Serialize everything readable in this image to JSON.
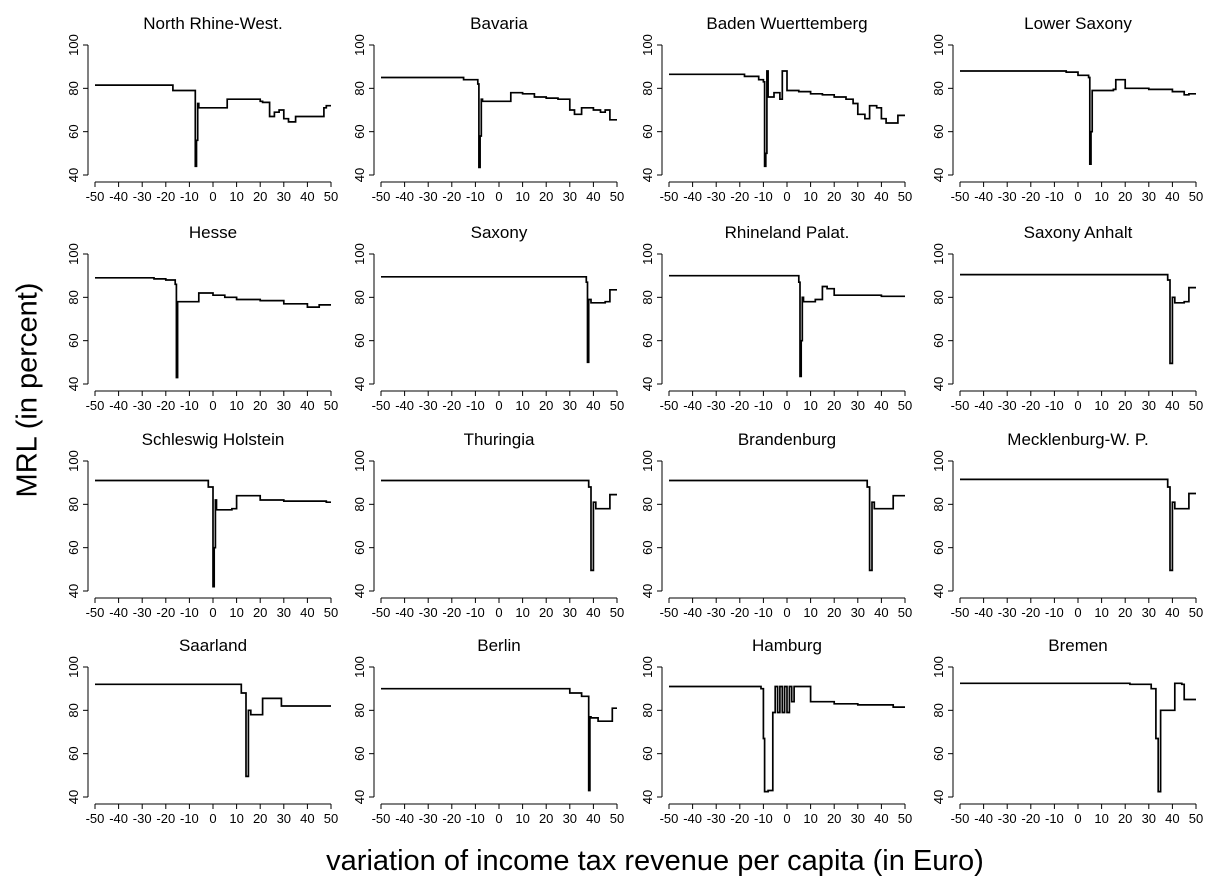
{
  "figure": {
    "ylabel": "MRL (in percent)",
    "xlabel": "variation of income tax revenue per capita (in Euro)"
  },
  "chart_data": [
    {
      "type": "line",
      "title": "North Rhine-West.",
      "xlim": [
        -50,
        50
      ],
      "ylim": [
        40,
        100
      ],
      "xticks": [
        -50,
        -40,
        -30,
        -20,
        -10,
        0,
        10,
        20,
        30,
        40,
        50
      ],
      "yticks": [
        40,
        60,
        80,
        100
      ],
      "x": [
        -50,
        -18,
        -17,
        -8,
        -7.5,
        -7,
        -6.5,
        -6,
        5,
        6,
        20,
        21,
        24,
        26,
        28,
        30,
        32,
        35,
        40,
        45,
        47,
        48,
        50
      ],
      "y": [
        81.5,
        81.5,
        79,
        79,
        44,
        56,
        73,
        71,
        71,
        75,
        74,
        73.5,
        67,
        69,
        70,
        66,
        64.5,
        67,
        67,
        67,
        71,
        72,
        72
      ]
    },
    {
      "type": "line",
      "title": "Bavaria",
      "xlim": [
        -50,
        50
      ],
      "ylim": [
        40,
        100
      ],
      "xticks": [
        -50,
        -40,
        -30,
        -20,
        -10,
        0,
        10,
        20,
        30,
        40,
        50
      ],
      "yticks": [
        40,
        60,
        80,
        100
      ],
      "x": [
        -50,
        -20,
        -15,
        -9,
        -8.5,
        -8,
        -7.5,
        -7,
        -3,
        1,
        5,
        10,
        15,
        20,
        25,
        30,
        32,
        35,
        40,
        43,
        45,
        47,
        50
      ],
      "y": [
        85,
        85,
        84,
        82,
        43.5,
        58,
        75,
        74,
        74,
        74,
        78,
        77.5,
        76,
        75.5,
        75,
        70,
        68,
        71,
        70,
        69,
        70,
        65.5,
        65.5
      ]
    },
    {
      "type": "line",
      "title": "Baden Wuerttemberg",
      "xlim": [
        -50,
        50
      ],
      "ylim": [
        40,
        100
      ],
      "xticks": [
        -50,
        -40,
        -30,
        -20,
        -10,
        0,
        10,
        20,
        30,
        40,
        50
      ],
      "yticks": [
        40,
        60,
        80,
        100
      ],
      "x": [
        -50,
        -25,
        -18,
        -12,
        -10,
        -9.5,
        -9,
        -8.5,
        -8,
        -6,
        -5.5,
        -3,
        -2,
        0,
        5,
        10,
        15,
        20,
        25,
        28,
        30,
        33,
        35,
        38,
        40,
        42,
        45,
        47,
        50
      ],
      "y": [
        86.5,
        86.5,
        85.5,
        84,
        83,
        44,
        50,
        88,
        76,
        76,
        78,
        75,
        88,
        79,
        78.5,
        77.5,
        77,
        76,
        75,
        73,
        68,
        66,
        72,
        71,
        66,
        64,
        64,
        67.5,
        67.5
      ]
    },
    {
      "type": "line",
      "title": "Lower Saxony",
      "xlim": [
        -50,
        50
      ],
      "ylim": [
        40,
        100
      ],
      "xticks": [
        -50,
        -40,
        -30,
        -20,
        -10,
        0,
        10,
        20,
        30,
        40,
        50
      ],
      "yticks": [
        40,
        60,
        80,
        100
      ],
      "x": [
        -50,
        -10,
        -5,
        0,
        4.5,
        5,
        5.5,
        6,
        15,
        16,
        20,
        30,
        40,
        45,
        47,
        50
      ],
      "y": [
        88,
        88,
        87.5,
        86,
        85,
        45,
        60,
        79,
        79.5,
        84,
        80,
        79.5,
        78.5,
        77,
        77.5,
        77.5
      ]
    },
    {
      "type": "line",
      "title": "Hesse",
      "xlim": [
        -50,
        50
      ],
      "ylim": [
        40,
        100
      ],
      "xticks": [
        -50,
        -40,
        -30,
        -20,
        -10,
        0,
        10,
        20,
        30,
        40,
        50
      ],
      "yticks": [
        40,
        60,
        80,
        100
      ],
      "x": [
        -50,
        -30,
        -25,
        -20,
        -16,
        -15.5,
        -15,
        -7,
        -6,
        0,
        5,
        10,
        20,
        30,
        40,
        45,
        50
      ],
      "y": [
        89,
        89,
        88.5,
        88,
        86,
        43,
        78,
        78,
        82,
        81,
        80,
        79,
        78.5,
        77,
        75.5,
        76.5,
        76.5
      ]
    },
    {
      "type": "line",
      "title": "Saxony",
      "xlim": [
        -50,
        50
      ],
      "ylim": [
        40,
        100
      ],
      "xticks": [
        -50,
        -40,
        -30,
        -20,
        -10,
        0,
        10,
        20,
        30,
        40,
        50
      ],
      "yticks": [
        40,
        60,
        80,
        100
      ],
      "x": [
        -50,
        -20,
        30,
        37,
        37.5,
        38,
        39,
        42,
        45,
        47,
        50
      ],
      "y": [
        89.5,
        89.5,
        89.5,
        87,
        50,
        79,
        77.5,
        77.5,
        78,
        83.5,
        83.5
      ]
    },
    {
      "type": "line",
      "title": "Rhineland Palat.",
      "xlim": [
        -50,
        50
      ],
      "ylim": [
        40,
        100
      ],
      "xticks": [
        -50,
        -40,
        -30,
        -20,
        -10,
        0,
        10,
        20,
        30,
        40,
        50
      ],
      "yticks": [
        40,
        60,
        80,
        100
      ],
      "x": [
        -50,
        -20,
        -2,
        5,
        5.5,
        6,
        6.5,
        7,
        8,
        12,
        15,
        17,
        20,
        30,
        40,
        50
      ],
      "y": [
        90,
        90,
        90,
        87,
        43.5,
        60,
        80,
        78,
        78,
        79,
        85,
        84,
        81,
        81,
        80.5,
        80.5
      ]
    },
    {
      "type": "line",
      "title": "Saxony Anhalt",
      "xlim": [
        -50,
        50
      ],
      "ylim": [
        40,
        100
      ],
      "xticks": [
        -50,
        -40,
        -30,
        -20,
        -10,
        0,
        10,
        20,
        30,
        40,
        50
      ],
      "yticks": [
        40,
        60,
        80,
        100
      ],
      "x": [
        -50,
        -20,
        32,
        38,
        39,
        40,
        41,
        42,
        45,
        47,
        50
      ],
      "y": [
        90.5,
        90.5,
        90.5,
        88,
        49.5,
        80,
        77.5,
        77.5,
        78,
        84.5,
        84.5
      ]
    },
    {
      "type": "line",
      "title": "Schleswig Holstein",
      "xlim": [
        -50,
        50
      ],
      "ylim": [
        40,
        100
      ],
      "xticks": [
        -50,
        -40,
        -30,
        -20,
        -10,
        0,
        10,
        20,
        30,
        40,
        50
      ],
      "yticks": [
        40,
        60,
        80,
        100
      ],
      "x": [
        -50,
        -20,
        -8,
        -2,
        0,
        0.5,
        1,
        1.5,
        2,
        8,
        10,
        20,
        30,
        40,
        48,
        50
      ],
      "y": [
        91,
        91,
        91,
        88,
        42,
        60,
        82,
        77.5,
        77.5,
        78,
        84,
        82,
        81.5,
        81.5,
        81,
        81
      ]
    },
    {
      "type": "line",
      "title": "Thuringia",
      "xlim": [
        -50,
        50
      ],
      "ylim": [
        40,
        100
      ],
      "xticks": [
        -50,
        -40,
        -30,
        -20,
        -10,
        0,
        10,
        20,
        30,
        40,
        50
      ],
      "yticks": [
        40,
        60,
        80,
        100
      ],
      "x": [
        -50,
        -20,
        32,
        38,
        39,
        40,
        41,
        45,
        47,
        50
      ],
      "y": [
        91,
        91,
        91,
        88,
        49.5,
        81,
        78,
        78,
        84.5,
        84.5
      ]
    },
    {
      "type": "line",
      "title": "Brandenburg",
      "xlim": [
        -50,
        50
      ],
      "ylim": [
        40,
        100
      ],
      "xticks": [
        -50,
        -40,
        -30,
        -20,
        -10,
        0,
        10,
        20,
        30,
        40,
        50
      ],
      "yticks": [
        40,
        60,
        80,
        100
      ],
      "x": [
        -50,
        -20,
        28,
        34,
        35,
        36,
        37,
        42,
        45,
        47,
        50
      ],
      "y": [
        91,
        91,
        91,
        88,
        49.5,
        81,
        78,
        78,
        84,
        84,
        84
      ]
    },
    {
      "type": "line",
      "title": "Mecklenburg-W. P.",
      "xlim": [
        -50,
        50
      ],
      "ylim": [
        40,
        100
      ],
      "xticks": [
        -50,
        -40,
        -30,
        -20,
        -10,
        0,
        10,
        20,
        30,
        40,
        50
      ],
      "yticks": [
        40,
        60,
        80,
        100
      ],
      "x": [
        -50,
        -20,
        32,
        38,
        39,
        40,
        41,
        45,
        47,
        50
      ],
      "y": [
        91.5,
        91.5,
        91.5,
        88,
        49.5,
        81,
        78,
        78,
        85,
        85
      ]
    },
    {
      "type": "line",
      "title": "Saarland",
      "xlim": [
        -50,
        50
      ],
      "ylim": [
        40,
        100
      ],
      "xticks": [
        -50,
        -40,
        -30,
        -20,
        -10,
        0,
        10,
        20,
        30,
        40,
        50
      ],
      "yticks": [
        40,
        60,
        80,
        100
      ],
      "x": [
        -50,
        -20,
        6,
        12,
        14,
        15,
        16,
        17,
        21,
        24,
        29,
        30,
        40,
        50
      ],
      "y": [
        92,
        92,
        92,
        88,
        49.5,
        80,
        78,
        78,
        85.5,
        85.5,
        82,
        82,
        82,
        82
      ]
    },
    {
      "type": "line",
      "title": "Berlin",
      "xlim": [
        -50,
        50
      ],
      "ylim": [
        40,
        100
      ],
      "xticks": [
        -50,
        -40,
        -30,
        -20,
        -10,
        0,
        10,
        20,
        30,
        40,
        50
      ],
      "yticks": [
        40,
        60,
        80,
        100
      ],
      "x": [
        -50,
        -20,
        25,
        30,
        35,
        37,
        38,
        38.5,
        39,
        42,
        44,
        47,
        48,
        50
      ],
      "y": [
        90,
        90,
        90,
        88,
        86.5,
        86.5,
        43,
        77,
        76.5,
        75,
        75,
        75,
        81,
        81
      ]
    },
    {
      "type": "line",
      "title": "Hamburg",
      "xlim": [
        -50,
        50
      ],
      "ylim": [
        40,
        100
      ],
      "xticks": [
        -50,
        -40,
        -30,
        -20,
        -10,
        0,
        10,
        20,
        30,
        40,
        50
      ],
      "yticks": [
        40,
        60,
        80,
        100
      ],
      "x": [
        -50,
        -20,
        -11,
        -10,
        -9.5,
        -8,
        -6,
        -5,
        -4,
        -3,
        -2,
        -1,
        0,
        1,
        2,
        3,
        5,
        9,
        10,
        20,
        30,
        40,
        45,
        50
      ],
      "y": [
        91,
        91,
        90,
        67,
        42.5,
        43,
        79,
        91,
        79,
        91,
        79,
        91,
        79,
        91,
        84,
        91,
        91,
        91,
        84,
        83,
        82.5,
        82.5,
        81.5,
        81.5
      ]
    },
    {
      "type": "line",
      "title": "Bremen",
      "xlim": [
        -50,
        50
      ],
      "ylim": [
        40,
        100
      ],
      "xticks": [
        -50,
        -40,
        -30,
        -20,
        -10,
        0,
        10,
        20,
        30,
        40,
        50
      ],
      "yticks": [
        40,
        60,
        80,
        100
      ],
      "x": [
        -50,
        -20,
        22,
        31,
        32,
        33,
        34,
        35,
        40,
        41,
        44,
        45,
        47,
        50
      ],
      "y": [
        92.5,
        92.5,
        92,
        90,
        90,
        67,
        42.5,
        80,
        80,
        92.5,
        92,
        85,
        85,
        85
      ]
    }
  ]
}
